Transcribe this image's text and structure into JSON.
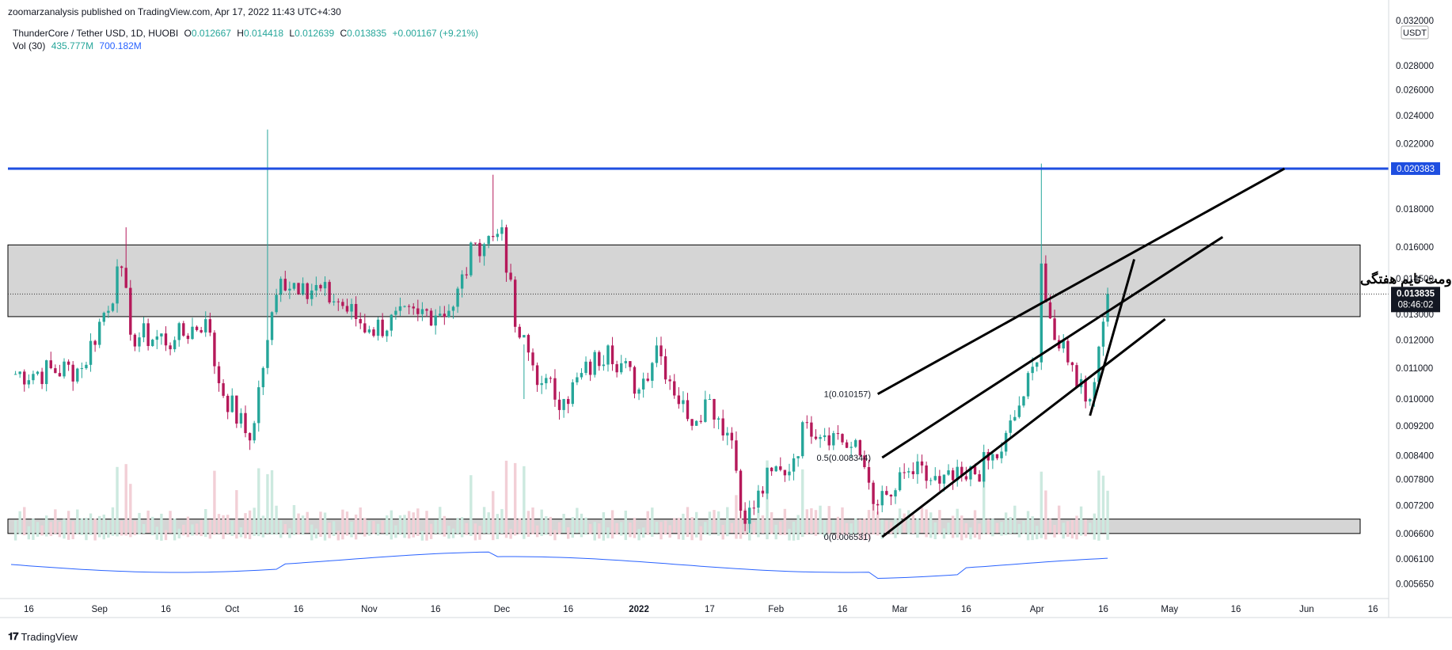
{
  "header": {
    "published": "zoomarzanalysis published on TradingView.com, Apr 17, 2022 11:43 UTC+4:30",
    "symbol": "ThunderCore / Tether USD, 1D, HUOBI",
    "ohlc": {
      "open_label": "O",
      "open": "0.012667",
      "high_label": "H",
      "high": "0.014418",
      "low_label": "L",
      "low": "0.012639",
      "close_label": "C",
      "close": "0.013835",
      "change": "+0.001167 (+9.21%)"
    },
    "volume": {
      "label": "Vol (30)",
      "v1": "435.777M",
      "v2": "700.182M"
    }
  },
  "footer": {
    "brand": "TradingView"
  },
  "price_axis": {
    "currency": "USDT",
    "top_clipped": "0.032000",
    "current_price": "0.013835",
    "countdown": "08:46:02",
    "level_label": "0.020383"
  },
  "annotations": {
    "fib_1": "1(0.010157)",
    "fib_05": "0.5(0.008344)",
    "fib_0": "0(0.006531)",
    "zone_text": "مقاومت تایم هفتگی"
  },
  "colors": {
    "up": "#26a69a",
    "down": "#b5195a",
    "level": "#1e4ee0",
    "zone": "#d0d0d0",
    "vol_up": "#cce9df",
    "vol_down": "#f2cfd6",
    "vol_ma": "#2962ff"
  },
  "chart_data": {
    "type": "candlestick",
    "title": "ThunderCore / Tether USD, 1D, HUOBI",
    "y_scale": "log",
    "y_ticks": [
      "0.028000",
      "0.026000",
      "0.024000",
      "0.022000",
      "0.018000",
      "0.016000",
      "0.014500",
      "0.013000",
      "0.012000",
      "0.011000",
      "0.010000",
      "0.009200",
      "0.008400",
      "0.007800",
      "0.007200",
      "0.006600",
      "0.006100",
      "0.005650"
    ],
    "x_ticks": [
      "16",
      "Sep",
      "16",
      "Oct",
      "16",
      "Nov",
      "16",
      "Dec",
      "16",
      "2022",
      "17",
      "Feb",
      "16",
      "Mar",
      "16",
      "Apr",
      "16",
      "May",
      "16",
      "Jun",
      "16"
    ],
    "date_range": [
      "2021-08-12",
      "2022-04-17"
    ],
    "resistance_level": 0.020383,
    "zones": [
      {
        "name": "upper",
        "low": 0.0129,
        "high": 0.0161
      },
      {
        "name": "lower",
        "low": 0.0066,
        "high": 0.0069
      }
    ],
    "anchors": [
      {
        "date": "2021-08-12",
        "close": 0.0108
      },
      {
        "date": "2021-08-28",
        "close": 0.011
      },
      {
        "date": "2021-09-06",
        "close": 0.015
      },
      {
        "date": "2021-09-08",
        "close": 0.0122
      },
      {
        "date": "2021-09-18",
        "close": 0.012
      },
      {
        "date": "2021-09-25",
        "close": 0.0128
      },
      {
        "date": "2021-09-28",
        "close": 0.0105
      },
      {
        "date": "2021-10-05",
        "close": 0.0088
      },
      {
        "date": "2021-10-09",
        "close": 0.012
      },
      {
        "date": "2021-10-12",
        "close": 0.0145
      },
      {
        "date": "2021-10-17",
        "close": 0.0143
      },
      {
        "date": "2021-10-25",
        "close": 0.0135
      },
      {
        "date": "2021-11-01",
        "close": 0.0124
      },
      {
        "date": "2021-11-12",
        "close": 0.013
      },
      {
        "date": "2021-11-20",
        "close": 0.0133
      },
      {
        "date": "2021-11-25",
        "close": 0.0162
      },
      {
        "date": "2021-11-29",
        "close": 0.0165
      },
      {
        "date": "2021-12-01",
        "close": 0.017
      },
      {
        "date": "2021-12-04",
        "close": 0.0125
      },
      {
        "date": "2021-12-10",
        "close": 0.0105
      },
      {
        "date": "2021-12-15",
        "close": 0.01
      },
      {
        "date": "2021-12-25",
        "close": 0.0118
      },
      {
        "date": "2022-01-01",
        "close": 0.0103
      },
      {
        "date": "2022-01-05",
        "close": 0.0118
      },
      {
        "date": "2022-01-12",
        "close": 0.0094
      },
      {
        "date": "2022-01-17",
        "close": 0.01
      },
      {
        "date": "2022-01-22",
        "close": 0.0088
      },
      {
        "date": "2022-01-25",
        "close": 0.0068
      },
      {
        "date": "2022-01-31",
        "close": 0.008
      },
      {
        "date": "2022-02-03",
        "close": 0.0079
      },
      {
        "date": "2022-02-08",
        "close": 0.0093
      },
      {
        "date": "2022-02-14",
        "close": 0.009
      },
      {
        "date": "2022-02-20",
        "close": 0.0084
      },
      {
        "date": "2022-02-24",
        "close": 0.0072
      },
      {
        "date": "2022-02-27",
        "close": 0.0074
      },
      {
        "date": "2022-03-03",
        "close": 0.008
      },
      {
        "date": "2022-03-10",
        "close": 0.0077
      },
      {
        "date": "2022-03-16",
        "close": 0.0078
      },
      {
        "date": "2022-03-24",
        "close": 0.0085
      },
      {
        "date": "2022-03-28",
        "close": 0.0098
      },
      {
        "date": "2022-04-01",
        "close": 0.0112
      },
      {
        "date": "2022-04-02",
        "close": 0.0152
      },
      {
        "date": "2022-04-05",
        "close": 0.012
      },
      {
        "date": "2022-04-08",
        "close": 0.0112
      },
      {
        "date": "2022-04-13",
        "close": 0.01
      },
      {
        "date": "2022-04-16",
        "close": 0.0127
      },
      {
        "date": "2022-04-17",
        "close": 0.013835
      }
    ],
    "spikes": [
      {
        "date": "2021-09-07",
        "high": 0.017
      },
      {
        "date": "2021-10-09",
        "high": 0.023
      },
      {
        "date": "2021-11-29",
        "high": 0.02
      },
      {
        "date": "2021-12-06",
        "high": 0.01
      },
      {
        "date": "2022-04-02",
        "high": 0.0207
      }
    ],
    "channel_lines": [
      {
        "from": {
          "date": "2022-02-25",
          "price": 0.006531
        },
        "to": {
          "date": "2022-04-30",
          "price": 0.0128
        }
      },
      {
        "from": {
          "date": "2022-02-25",
          "price": 0.008344
        },
        "to": {
          "date": "2022-05-13",
          "price": 0.0165
        }
      },
      {
        "from": {
          "date": "2022-02-24",
          "price": 0.010157
        },
        "to": {
          "date": "2022-05-27",
          "price": 0.020383
        }
      },
      {
        "from": {
          "date": "2022-04-13",
          "price": 0.0095
        },
        "to": {
          "date": "2022-04-23",
          "price": 0.0154
        }
      }
    ],
    "fib_levels": [
      {
        "ratio": 1,
        "price": 0.010157
      },
      {
        "ratio": 0.5,
        "price": 0.008344
      },
      {
        "ratio": 0,
        "price": 0.006531
      }
    ],
    "volume_ma": "Vol (30)"
  }
}
